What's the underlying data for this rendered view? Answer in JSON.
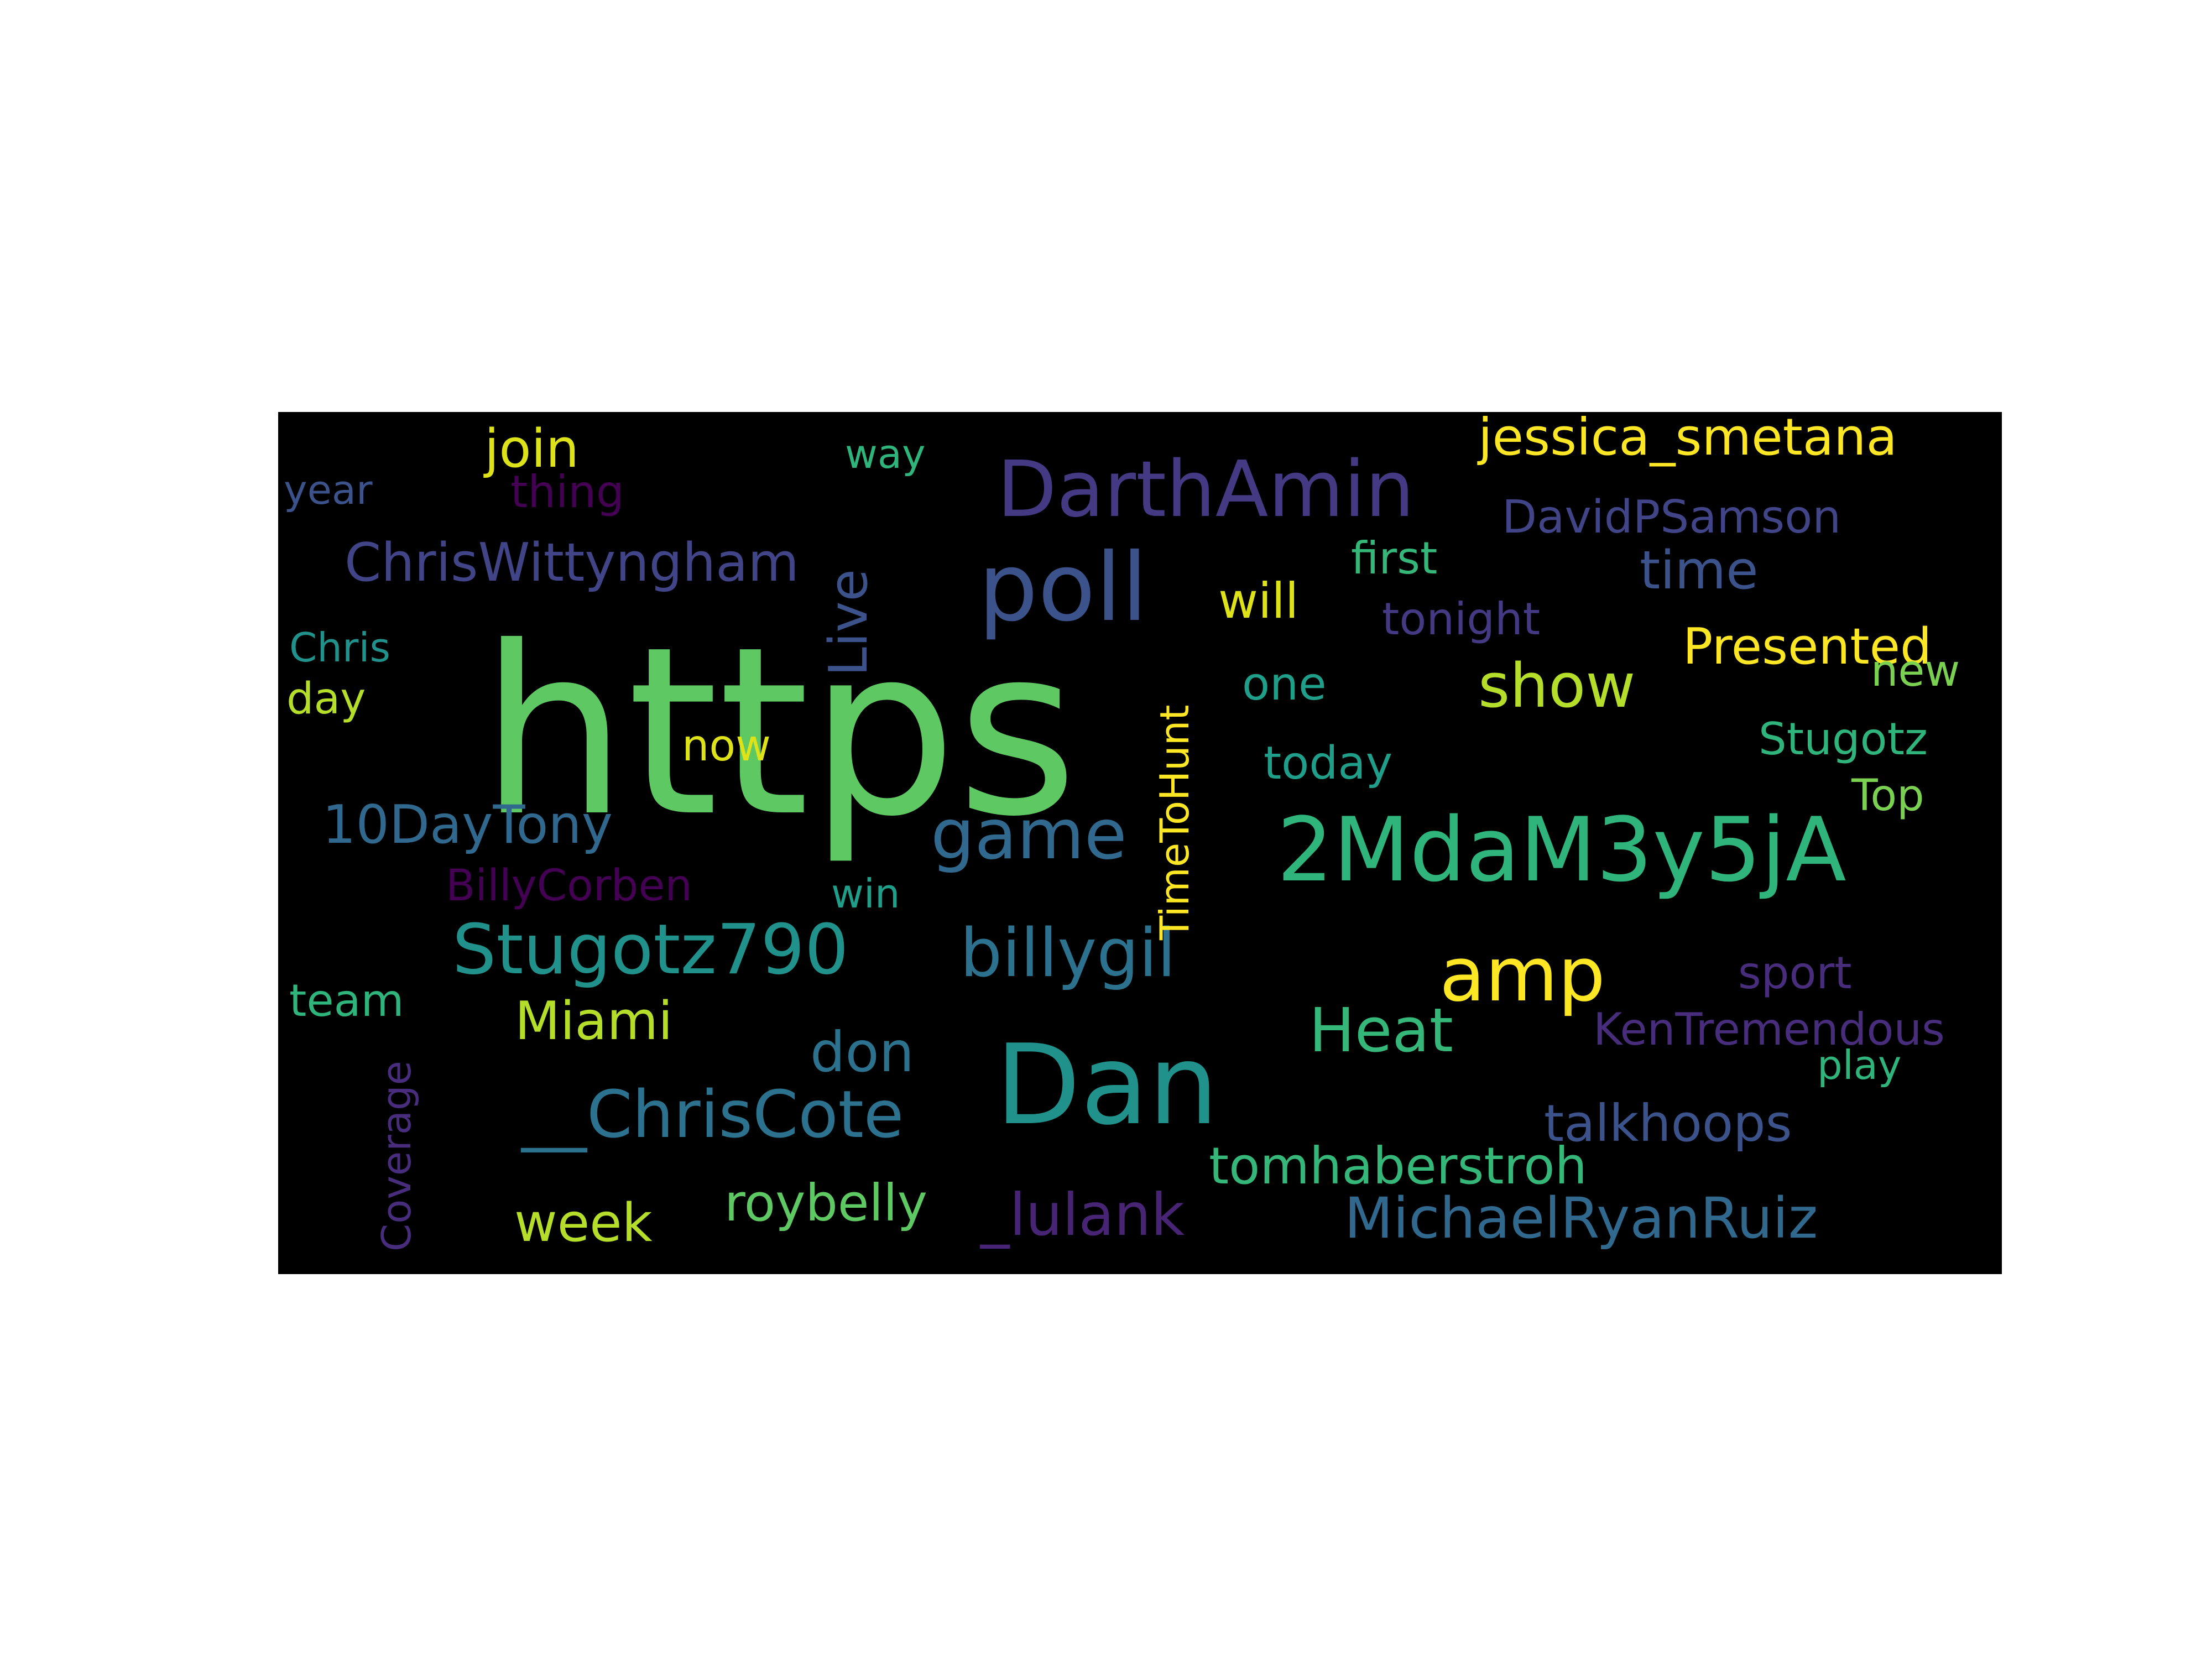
{
  "words": [
    {
      "text": "https",
      "color": "#5ec962"
    },
    {
      "text": "poll",
      "color": "#3b528b"
    },
    {
      "text": "Dan",
      "color": "#21918c"
    },
    {
      "text": "2MdaM3y5jA",
      "color": "#2fb47c"
    },
    {
      "text": "DarthAmin",
      "color": "#443983"
    },
    {
      "text": "game",
      "color": "#31688e"
    },
    {
      "text": "Stugotz790",
      "color": "#21918c"
    },
    {
      "text": "billygil",
      "color": "#2c728e"
    },
    {
      "text": "amp",
      "color": "#fde725"
    },
    {
      "text": "__ChrisCote",
      "color": "#2c728e"
    },
    {
      "text": "MichaelRyanRuiz",
      "color": "#31688e"
    },
    {
      "text": "show",
      "color": "#b5de2b"
    },
    {
      "text": "Heat",
      "color": "#35b779"
    },
    {
      "text": "ChrisWittyngham",
      "color": "#414487"
    },
    {
      "text": "jessica_smetana",
      "color": "#fde725"
    },
    {
      "text": "10DayTony",
      "color": "#31688e"
    },
    {
      "text": "Miami",
      "color": "#b5de2b"
    },
    {
      "text": "don",
      "color": "#2c728e"
    },
    {
      "text": "talkhoops",
      "color": "#3b528b"
    },
    {
      "text": "tomhaberstroh",
      "color": "#35b779"
    },
    {
      "text": "roybelly",
      "color": "#5ec962"
    },
    {
      "text": "_lulank",
      "color": "#482475"
    },
    {
      "text": "week",
      "color": "#b5de2b"
    },
    {
      "text": "join",
      "color": "#dde318"
    },
    {
      "text": "time",
      "color": "#3b528b"
    },
    {
      "text": "Presented",
      "color": "#fde725"
    },
    {
      "text": "DavidPSamson",
      "color": "#414487"
    },
    {
      "text": "Live",
      "color": "#3b528b"
    },
    {
      "text": "will",
      "color": "#dde318"
    },
    {
      "text": "first",
      "color": "#35b779"
    },
    {
      "text": "tonight",
      "color": "#443983"
    },
    {
      "text": "one",
      "color": "#1f9e89"
    },
    {
      "text": "today",
      "color": "#1f9e89"
    },
    {
      "text": "Stugotz",
      "color": "#2fb47c"
    },
    {
      "text": "Top",
      "color": "#7ad151"
    },
    {
      "text": "new",
      "color": "#7ad151"
    },
    {
      "text": "TimeToHunt",
      "color": "#fde725"
    },
    {
      "text": "now",
      "color": "#dde318"
    },
    {
      "text": "BillyCorben",
      "color": "#440154"
    },
    {
      "text": "win",
      "color": "#1f9e89"
    },
    {
      "text": "sport",
      "color": "#472d7b"
    },
    {
      "text": "KenTremendous",
      "color": "#472d7b"
    },
    {
      "text": "play",
      "color": "#2fb47c"
    },
    {
      "text": "team",
      "color": "#2fb47c"
    },
    {
      "text": "Coverage",
      "color": "#472d7b"
    },
    {
      "text": "year",
      "color": "#3b528b"
    },
    {
      "text": "thing",
      "color": "#440154"
    },
    {
      "text": "way",
      "color": "#2fb47c"
    },
    {
      "text": "Chris",
      "color": "#21918c"
    },
    {
      "text": "day",
      "color": "#b5de2b"
    }
  ]
}
